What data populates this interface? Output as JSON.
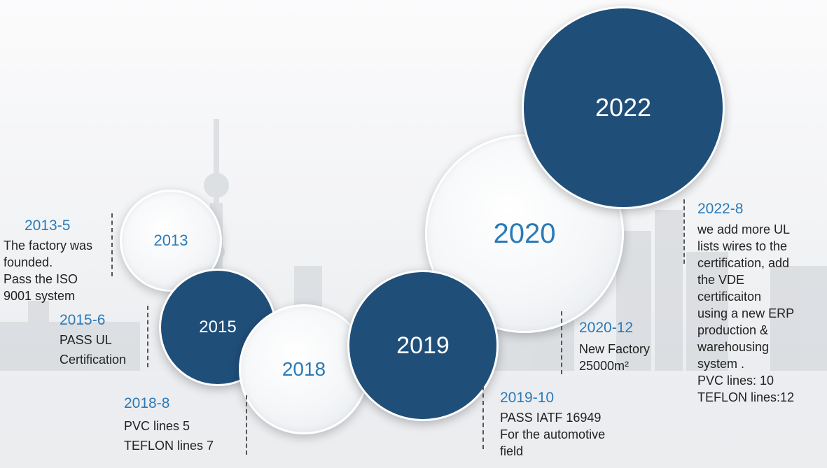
{
  "milestones": [
    {
      "year": "2013",
      "date": "2013-5",
      "text": "The factory was\nfounded.\nPass the ISO\n9001 system"
    },
    {
      "year": "2015",
      "date": "2015-6",
      "text": "PASS UL\nCertification"
    },
    {
      "year": "2018",
      "date": "2018-8",
      "text": "PVC lines 5\nTEFLON lines 7"
    },
    {
      "year": "2019",
      "date": "2019-10",
      "text": "PASS IATF 16949\nFor the automotive\nfield"
    },
    {
      "year": "2020",
      "date": "2020-12",
      "text": "New Factory\n25000m²"
    },
    {
      "year": "2022",
      "date": "2022-8",
      "text": "we add more UL\nlists wires to the\ncertification, add\nthe VDE\ncertificaiton\nusing a new ERP\nproduction &\nwarehousing\nsystem .\nPVC lines: 10\nTEFLON lines:12"
    }
  ],
  "colors": {
    "dark_circle": "#1f4e79",
    "accent_text": "#2a7ab8"
  }
}
